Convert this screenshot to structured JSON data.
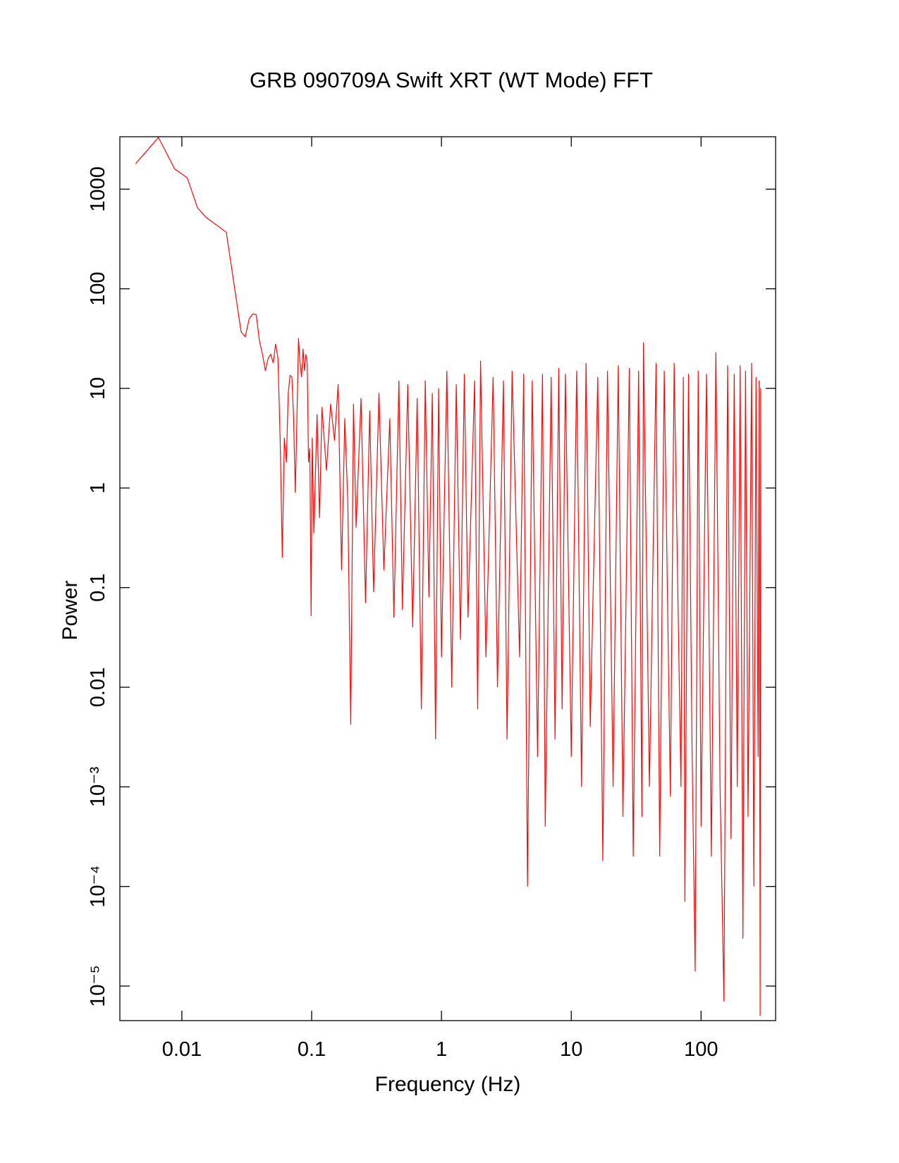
{
  "chart_data": {
    "type": "line",
    "title": "GRB 090709A Swift XRT (WT Mode) FFT",
    "x_label": "Frequency (Hz)",
    "y_label": "Power",
    "x_log": true,
    "y_log": true,
    "grid": false,
    "xlim": [
      0.00333,
      375
    ],
    "ylim": [
      4.5e-06,
      3360
    ],
    "xticks": [
      0.01,
      0.1,
      1,
      10,
      100
    ],
    "yticks": [
      {
        "value": 1e-05,
        "label": "10⁻⁵"
      },
      {
        "value": 0.0001,
        "label": "10⁻⁴"
      },
      {
        "value": 0.001,
        "label": "10⁻³"
      },
      0.01,
      0.1,
      1,
      10,
      100,
      1000
    ],
    "series": [
      {
        "name": "Power",
        "color": "#f50a0a",
        "x": [
          0.0044,
          0.0066,
          0.0088,
          0.011,
          0.0132,
          0.0154,
          0.022,
          0.0286,
          0.0308,
          0.033,
          0.0352,
          0.0374,
          0.0396,
          0.0418,
          0.044,
          0.0462,
          0.0484,
          0.0506,
          0.0528,
          0.055,
          0.0572,
          0.0594,
          0.0616,
          0.0638,
          0.066,
          0.0682,
          0.0704,
          0.0726,
          0.0748,
          0.077,
          0.0792,
          0.0814,
          0.0836,
          0.0858,
          0.088,
          0.0902,
          0.0924,
          0.0946,
          0.0968,
          0.099,
          0.101,
          0.104,
          0.11,
          0.115,
          0.12,
          0.13,
          0.14,
          0.15,
          0.16,
          0.17,
          0.18,
          0.19,
          0.2,
          0.21,
          0.22,
          0.24,
          0.26,
          0.28,
          0.3,
          0.33,
          0.36,
          0.4,
          0.43,
          0.47,
          0.5,
          0.55,
          0.6,
          0.65,
          0.7,
          0.75,
          0.8,
          0.85,
          0.9,
          0.95,
          1.0,
          1.1,
          1.2,
          1.3,
          1.4,
          1.5,
          1.6,
          1.8,
          1.9,
          2.0,
          2.2,
          2.5,
          2.7,
          3.0,
          3.2,
          3.5,
          4.0,
          4.3,
          4.6,
          5.0,
          5.5,
          6.0,
          6.3,
          7,
          7.5,
          8,
          8.5,
          9,
          10,
          11,
          12,
          13,
          14,
          16,
          17.5,
          19,
          21,
          23,
          25,
          28,
          30,
          33,
          35,
          36,
          40,
          45,
          48,
          52,
          58,
          62,
          70,
          73,
          75,
          80,
          85,
          90,
          95,
          100,
          110,
          120,
          130,
          140,
          150,
          160,
          170,
          180,
          190,
          200,
          210,
          220,
          230,
          245,
          255,
          265,
          275,
          280,
          285,
          288
        ],
        "values": [
          1800,
          3300,
          1600,
          1300,
          650,
          520,
          370,
          37,
          33,
          50,
          56,
          55,
          30,
          22,
          15,
          20,
          22,
          18,
          28,
          20,
          3,
          0.2,
          3.2,
          1.8,
          9,
          13.5,
          13,
          5,
          0.9,
          5,
          32,
          18,
          13,
          25,
          15,
          22,
          18,
          1.8,
          2.5,
          0.052,
          3.2,
          0.35,
          5.5,
          0.5,
          6.5,
          1.5,
          7,
          3,
          11,
          0.15,
          5,
          0.7,
          0.0042,
          7,
          0.4,
          8,
          0.07,
          6,
          0.09,
          9,
          0.15,
          5,
          0.05,
          12,
          0.06,
          11,
          0.04,
          8,
          0.006,
          12,
          0.08,
          9,
          0.003,
          10,
          0.02,
          15,
          0.01,
          11,
          0.03,
          14,
          0.05,
          12,
          0.006,
          19,
          0.02,
          13,
          0.01,
          12,
          0.003,
          15,
          0.02,
          14,
          0.0001,
          12,
          0.002,
          14,
          0.0004,
          13,
          0.003,
          16,
          0.006,
          14,
          0.002,
          15,
          0.001,
          18,
          0.004,
          13,
          0.00018,
          15,
          0.001,
          17,
          0.0005,
          16,
          0.0002,
          15,
          0.0005,
          29,
          0.001,
          18,
          0.0002,
          15,
          0.0008,
          18,
          0.001,
          13,
          7e-05,
          14,
          0.003,
          1.4e-05,
          15,
          0.0004,
          14,
          0.0002,
          23,
          0.001,
          7e-06,
          17,
          0.0003,
          14,
          0.001,
          17,
          3e-05,
          15,
          0.0005,
          18,
          0.0001,
          13,
          0.002,
          12,
          5e-06,
          10
        ]
      }
    ]
  }
}
